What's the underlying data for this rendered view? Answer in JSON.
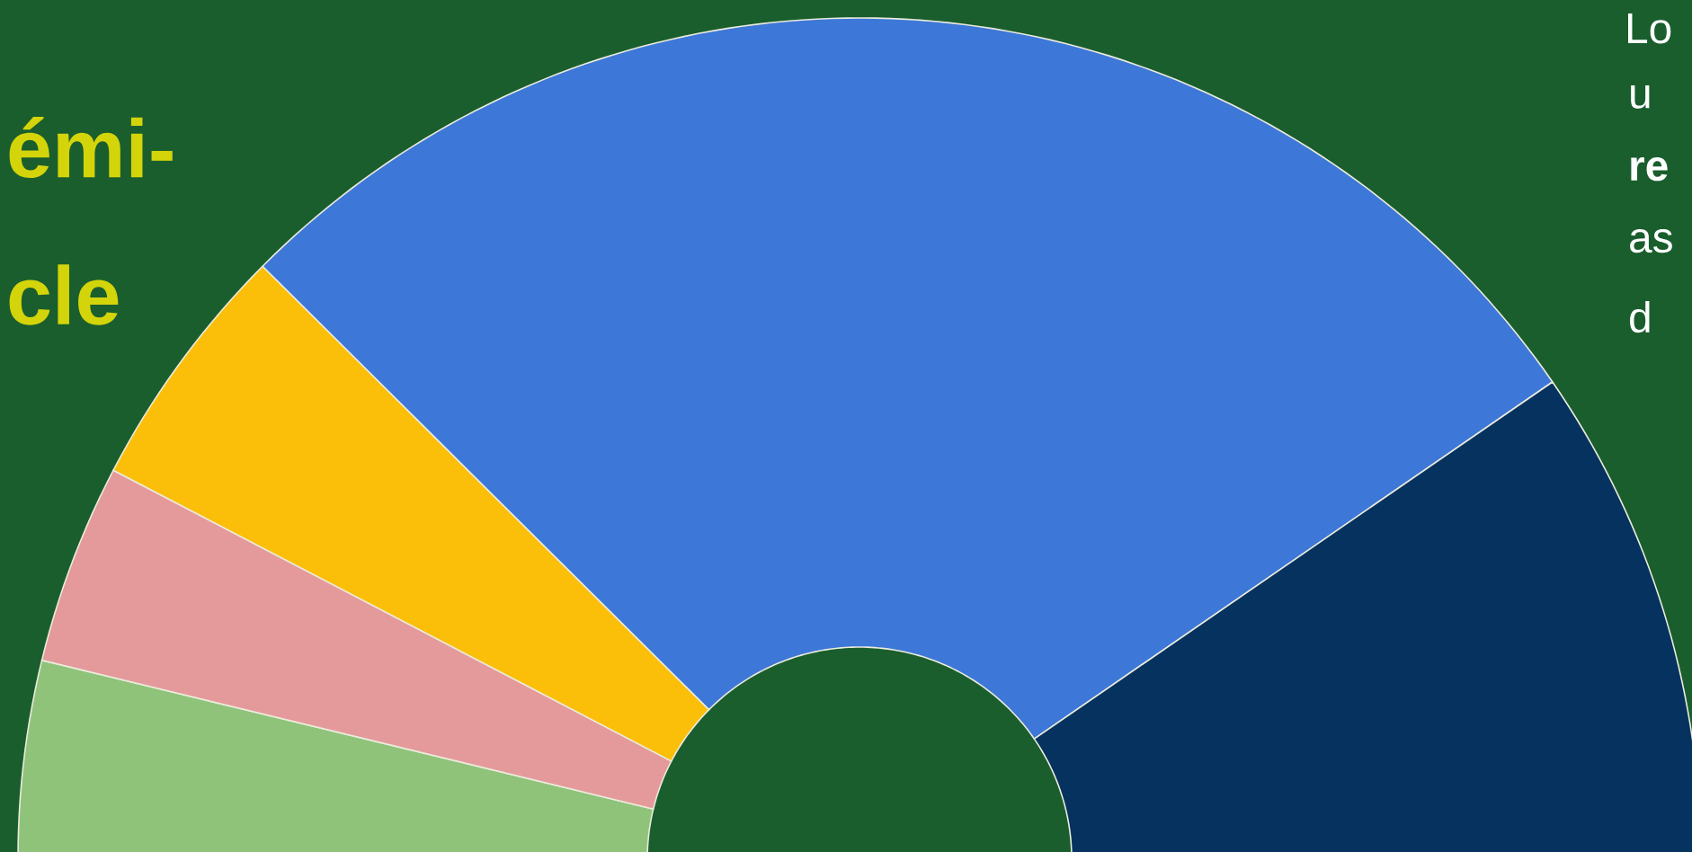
{
  "chart_data": {
    "type": "donut",
    "title": "émi-",
    "subtitle": "cle",
    "annotations": [
      "Lo",
      "u",
      "**re**",
      "as",
      "d"
    ],
    "categories": [
      null,
      null,
      null,
      null,
      null
    ],
    "values": [
      7.6,
      7.7,
      9.6,
      55.9,
      19.2
    ],
    "colors": [
      "#8fc37a",
      "#e49a9a",
      "#fbbf0a",
      "#3d78d8",
      "#06325f"
    ]
  }
}
